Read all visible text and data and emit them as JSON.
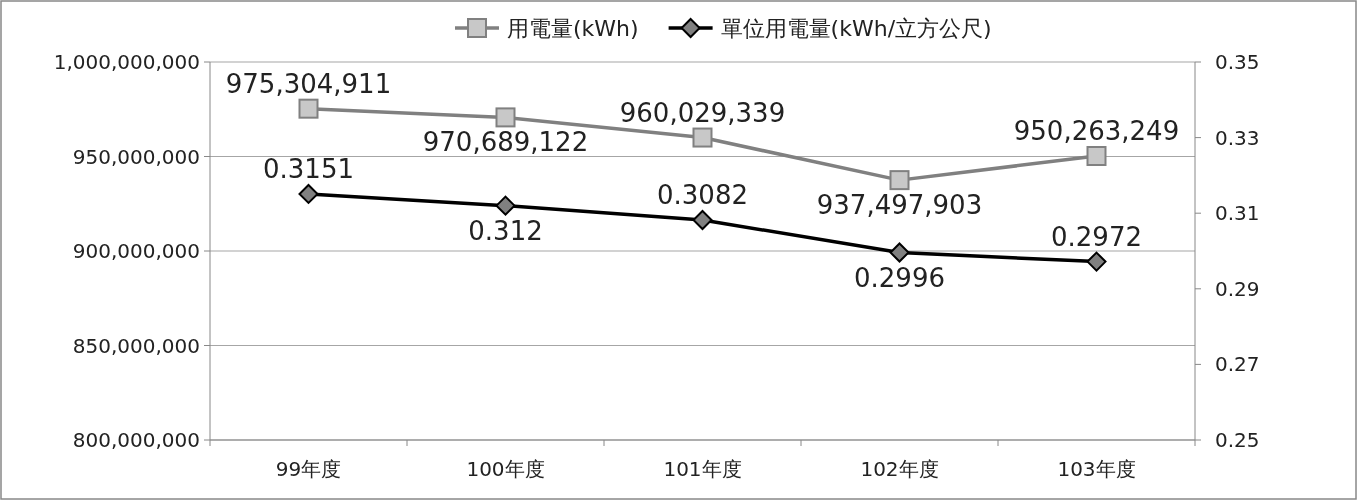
{
  "chart_data": {
    "type": "line",
    "categories": [
      "99年度",
      "100年度",
      "101年度",
      "102年度",
      "103年度"
    ],
    "series": [
      {
        "name": "用電量(kWh)",
        "color": "#808080",
        "values": [
          975304911,
          970689122,
          960029339,
          937497903,
          950263249
        ],
        "value_labels": [
          "975,304,911",
          "970,689,122",
          "960,029,339",
          "937,497,903",
          "950,263,249"
        ],
        "marker": "square"
      },
      {
        "name": "單位用電量(kWh/立方公尺)",
        "color": "#000000",
        "values": [
          0.3151,
          0.312,
          0.3082,
          0.2996,
          0.2972
        ],
        "axis": "y2",
        "marker": "diamond"
      }
    ],
    "ylim": [
      800000000,
      1000000000
    ],
    "yticks": [
      {
        "value": 800000000,
        "label": "800,000,000"
      },
      {
        "value": 850000000,
        "label": "850,000,000"
      },
      {
        "value": 900000000,
        "label": "900,000,000"
      },
      {
        "value": 950000000,
        "label": "950,000,000"
      },
      {
        "value": 1000000000,
        "label": "1,000,000,000"
      }
    ],
    "y2lim": [
      0.25,
      0.35
    ],
    "y2ticks": [
      0.25,
      0.27,
      0.29,
      0.31,
      0.33,
      0.35
    ],
    "grid": "y",
    "legend": "top",
    "data_labels": true
  }
}
